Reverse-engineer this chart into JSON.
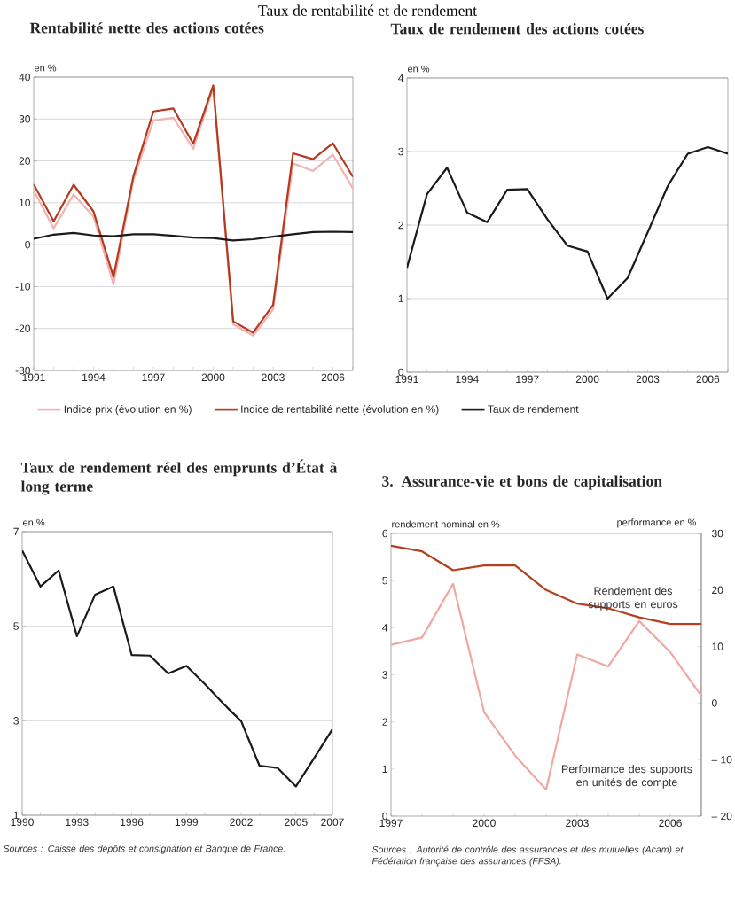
{
  "chart_data": [
    {
      "type": "line",
      "title": "Rentabilité nette des actions cotées",
      "ylabel": "en %",
      "annotations": [
        "Taux de rentabilité et de rendement"
      ],
      "xlim": [
        1991,
        2007
      ],
      "ylim": [
        -30,
        40
      ],
      "yticks": [
        -30,
        -20,
        -10,
        0,
        10,
        20,
        30,
        40
      ],
      "xticks": [
        1991,
        {
          "value": 1992,
          "label": null
        },
        {
          "value": 1993,
          "label": null
        },
        1994,
        {
          "value": 1995,
          "label": null
        },
        {
          "value": 1996,
          "label": null
        },
        1997,
        {
          "value": 1998,
          "label": null
        },
        {
          "value": 1999,
          "label": null
        },
        2000,
        {
          "value": 2001,
          "label": null
        },
        {
          "value": 2002,
          "label": null
        },
        2003,
        {
          "value": 2004,
          "label": null
        },
        {
          "value": 2005,
          "label": null
        },
        2006,
        {
          "value": 2007,
          "label": null
        }
      ],
      "grid": "y",
      "legend": "bottom",
      "x": [
        1991,
        1992,
        1993,
        1994,
        1995,
        1996,
        1997,
        1998,
        1999,
        2000,
        2001,
        2002,
        2003,
        2004,
        2005,
        2006,
        2007
      ],
      "series": [
        {
          "name": "Indice prix (évolution en %)",
          "color": "#f2b3b0",
          "values": [
            13,
            3.9,
            12,
            6.7,
            -9.5,
            15.5,
            29.6,
            30.3,
            22.9,
            37.3,
            -19,
            -21.7,
            -15.5,
            19.4,
            17.6,
            21.5,
            13.4
          ]
        },
        {
          "name": "Indice de rentabilité nette (évolution en %)",
          "color": "#b5391f",
          "values": [
            14.4,
            5.6,
            14.3,
            7.9,
            -7.7,
            16.4,
            31.8,
            32.5,
            24.1,
            38,
            -18.3,
            -21,
            -14.4,
            21.8,
            20.4,
            24.2,
            16.2
          ]
        },
        {
          "name": "Taux de rendement",
          "color": "#1a1a1a",
          "values": [
            1.4,
            2.4,
            2.8,
            2.2,
            2,
            2.5,
            2.5,
            2.1,
            1.7,
            1.6,
            1,
            1.3,
            1.9,
            2.5,
            3,
            3.1,
            3
          ]
        }
      ]
    },
    {
      "type": "line",
      "title": "Taux de rendement des actions cotées",
      "ylabel": "en %",
      "xlim": [
        1991,
        2007
      ],
      "ylim": [
        0,
        4
      ],
      "yticks": [
        0,
        1,
        2,
        3,
        4
      ],
      "xticks": [
        1991,
        {
          "value": 1992,
          "label": null
        },
        {
          "value": 1993,
          "label": null
        },
        1994,
        {
          "value": 1995,
          "label": null
        },
        {
          "value": 1996,
          "label": null
        },
        1997,
        {
          "value": 1998,
          "label": null
        },
        {
          "value": 1999,
          "label": null
        },
        2000,
        {
          "value": 2001,
          "label": null
        },
        {
          "value": 2002,
          "label": null
        },
        2003,
        {
          "value": 2004,
          "label": null
        },
        {
          "value": 2005,
          "label": null
        },
        2006,
        {
          "value": 2007,
          "label": null
        }
      ],
      "grid": "y",
      "x": [
        1991,
        1992,
        1993,
        1994,
        1995,
        1996,
        1997,
        1998,
        1999,
        2000,
        2001,
        2002,
        2003,
        2004,
        2005,
        2006,
        2007
      ],
      "series": [
        {
          "color": "#1a1a1a",
          "values": [
            1.42,
            2.42,
            2.78,
            2.17,
            2.04,
            2.48,
            2.49,
            2.08,
            1.72,
            1.64,
            1,
            1.28,
            1.9,
            2.53,
            2.97,
            3.06,
            2.97
          ]
        }
      ]
    },
    {
      "type": "line",
      "title": "Taux de rendement réel des emprunts d’État à long terme",
      "ylabel": "en %",
      "annotations": [
        "Sources : Caisse des dépôts et consignation et Banque de France."
      ],
      "xlim": [
        1990,
        2007
      ],
      "ylim": [
        1,
        7
      ],
      "yticks": [
        1,
        3,
        5,
        7
      ],
      "xticks": [
        1990,
        {
          "value": 1991,
          "label": null
        },
        {
          "value": 1992,
          "label": null
        },
        1993,
        {
          "value": 1994,
          "label": null
        },
        {
          "value": 1995,
          "label": null
        },
        1996,
        {
          "value": 1997,
          "label": null
        },
        {
          "value": 1998,
          "label": null
        },
        1999,
        {
          "value": 2000,
          "label": null
        },
        {
          "value": 2001,
          "label": null
        },
        2002,
        {
          "value": 2003,
          "label": null
        },
        {
          "value": 2004,
          "label": null
        },
        2005,
        {
          "value": 2006,
          "label": null
        },
        2007
      ],
      "grid": "y",
      "x": [
        1990,
        1991,
        1992,
        1993,
        1994,
        1995,
        1996,
        1997,
        1998,
        1999,
        2000,
        2001,
        2002,
        2003,
        2004,
        2005,
        2006,
        2007
      ],
      "series": [
        {
          "color": "#1a1a1a",
          "values": [
            6.6,
            5.84,
            6.18,
            4.79,
            5.67,
            5.84,
            4.39,
            4.38,
            4,
            4.16,
            3.78,
            3.37,
            2.99,
            2.05,
            2,
            1.61,
            2.21,
            2.82
          ]
        }
      ]
    },
    {
      "type": "line",
      "title": "3. Assurance-vie et bons de capitalisation",
      "ylabel": "rendement nominal en %",
      "y2label": "performance en %",
      "annotations": [
        "Sources : Autorité de contrôle des assurances et des mutuelles (Acam) et Fédération française des assurances (FFSA)."
      ],
      "xlim": [
        1997,
        2007
      ],
      "ylim": [
        0,
        6
      ],
      "yticks": [
        0,
        1,
        2,
        3,
        4,
        5,
        6
      ],
      "y2lim": [
        -20,
        30
      ],
      "y2ticks": [
        {
          "value": -20,
          "label": "– 20"
        },
        {
          "value": -10,
          "label": "– 10"
        },
        0,
        10,
        20,
        30
      ],
      "xticks": [
        1997,
        {
          "value": 1998,
          "label": null
        },
        {
          "value": 1999,
          "label": null
        },
        2000,
        {
          "value": 2001,
          "label": null
        },
        {
          "value": 2002,
          "label": null
        },
        2003,
        {
          "value": 2004,
          "label": null
        },
        {
          "value": 2005,
          "label": null
        },
        2006,
        {
          "value": 2007,
          "label": null
        }
      ],
      "x": [
        1997,
        1998,
        1999,
        2000,
        2001,
        2002,
        2003,
        2004,
        2005,
        2006,
        2007
      ],
      "series": [
        {
          "name": "Rendement des supports en euros",
          "color": "#b5401f",
          "values": [
            5.74,
            5.62,
            5.22,
            5.32,
            5.32,
            4.8,
            4.51,
            4.41,
            4.22,
            4.08,
            4.08
          ]
        },
        {
          "name": "Performance des supports en unités de compte",
          "color": "#f2a6a0",
          "axis": "y2",
          "values": [
            10.3,
            11.6,
            21.1,
            -1.6,
            -9.3,
            -15.3,
            8.6,
            6.5,
            14.5,
            9,
            1.3
          ]
        }
      ]
    }
  ]
}
